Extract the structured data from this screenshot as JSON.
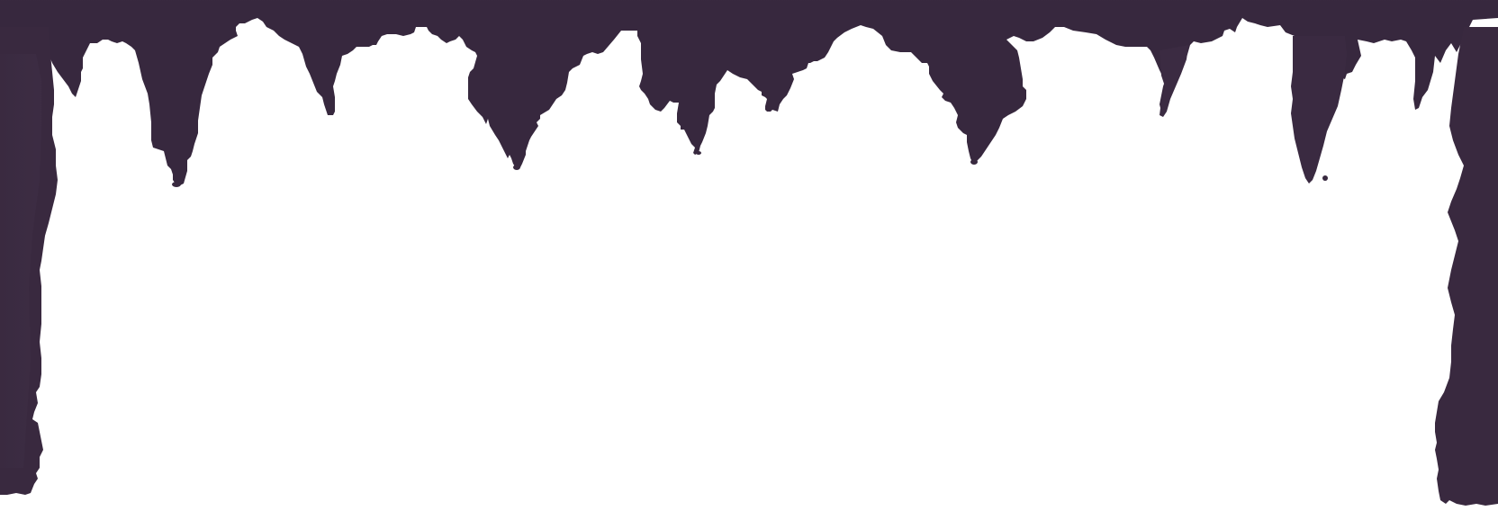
{
  "scene": {
    "description_label": "cave-frame",
    "colors": {
      "rock_top": "#5E4966",
      "rock_mid": "#46354F",
      "rock_dark": "#38293F",
      "background": "#FFFFFF"
    }
  }
}
